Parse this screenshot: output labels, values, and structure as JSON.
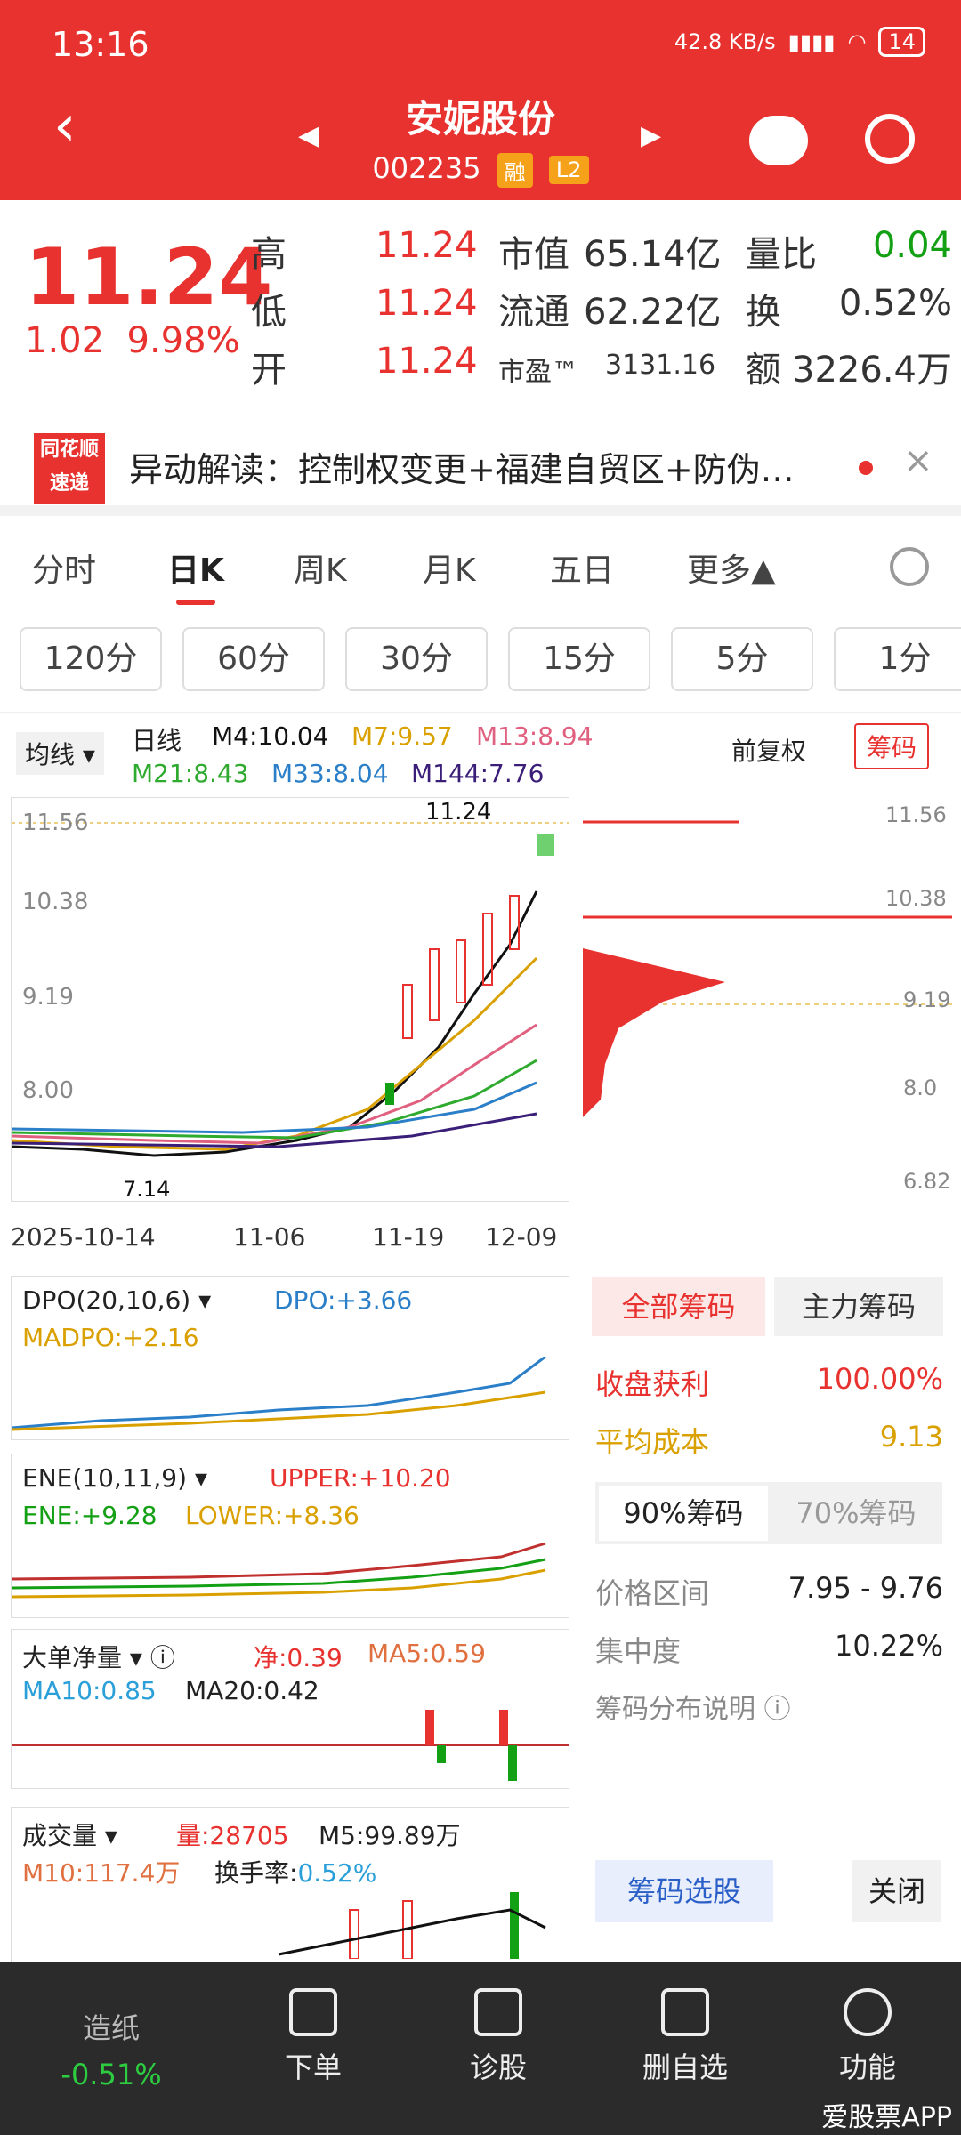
{
  "status": {
    "time": "13:16",
    "net": "42.8 KB/s",
    "battery": "14"
  },
  "header": {
    "title": "安妮股份",
    "code": "002235",
    "tag1": "融",
    "tag2": "L2"
  },
  "quote": {
    "price": "11.24",
    "change": "1.02",
    "pct": "9.98%",
    "high_label": "高",
    "high": "11.24",
    "low_label": "低",
    "low": "11.24",
    "open_label": "开",
    "open": "11.24",
    "mcap_label": "市值",
    "mcap": "65.14亿",
    "float_label": "流通",
    "float": "62.22亿",
    "pe_label": "市盈™",
    "pe": "3131.16",
    "vr_label": "量比",
    "vr": "0.04",
    "turn_label": "换",
    "turn": "0.52%",
    "amt_label": "额",
    "amt": "3226.4万"
  },
  "banner": {
    "logo1": "同花顺",
    "logo2": "速递",
    "text": "异动解读：控制权变更+福建自贸区+防伪…"
  },
  "tabs": [
    "分时",
    "日K",
    "周K",
    "月K",
    "五日",
    "更多▲"
  ],
  "periods": [
    "120分",
    "60分",
    "30分",
    "15分",
    "5分",
    "1分"
  ],
  "chart": {
    "ma_btn": "均线",
    "daily": "日线",
    "m4": "M4:10.04",
    "m7": "M7:9.57",
    "m13": "M13:8.94",
    "m21": "M21:8.43",
    "m33": "M33:8.04",
    "m144": "M144:7.76",
    "fq": "前复权",
    "chouma": "筹码",
    "y1": "11.56",
    "y2": "10.38",
    "y3": "9.19",
    "y4": "8.00",
    "hi_tag": "11.24",
    "lo_tag": "7.14",
    "d1": "2025-10-14",
    "d2": "11-06",
    "d3": "11-19",
    "d4": "12-09",
    "ry1": "11.56",
    "ry2": "10.38",
    "ry3": "9.19",
    "ry4": "8.0",
    "ry5": "6.82"
  },
  "dpo": {
    "name": "DPO(20,10,6)",
    "dpo": "DPO:+3.66",
    "madpo": "MADPO:+2.16"
  },
  "ene": {
    "name": "ENE(10,11,9)",
    "upper": "UPPER:+10.20",
    "ene": "ENE:+9.28",
    "lower": "LOWER:+8.36"
  },
  "ddjl": {
    "name": "大单净量",
    "net": "净:0.39",
    "ma5": "MA5:0.59",
    "ma10": "MA10:0.85",
    "ma20": "MA20:0.42"
  },
  "vol": {
    "name": "成交量",
    "liang": "量:28705",
    "m5": "M5:99.89万",
    "m10": "M10:117.4万",
    "hsl_label": "换手率:",
    "hsl": "0.52%"
  },
  "chip": {
    "tab1": "全部筹码",
    "tab2": "主力筹码",
    "profit_label": "收盘获利",
    "profit": "100.00%",
    "cost_label": "平均成本",
    "cost": "9.13",
    "p90": "90%筹码",
    "p70": "70%筹码",
    "range_label": "价格区间",
    "range": "7.95 - 9.76",
    "conc_label": "集中度",
    "conc": "10.22%",
    "help": "筹码分布说明 ⓘ",
    "pick": "筹码选股",
    "close": "关闭"
  },
  "nav": {
    "zz": "造纸",
    "zz_pct": "-0.51%",
    "order": "下单",
    "diag": "诊股",
    "del": "删自选",
    "func": "功能"
  },
  "watermark": "爱股票APP"
}
